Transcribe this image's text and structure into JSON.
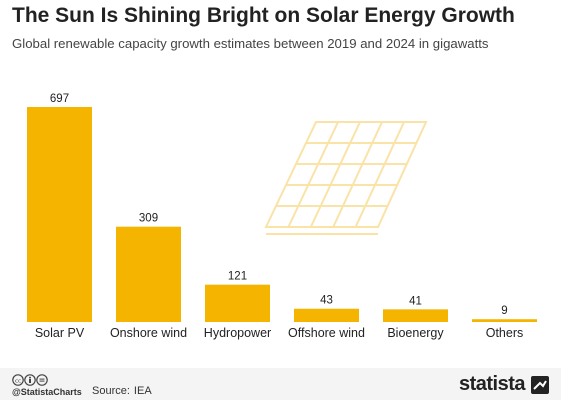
{
  "chart_data": {
    "type": "bar",
    "title": "The Sun Is Shining Bright on Solar Energy Growth",
    "subtitle": "Global renewable capacity growth estimates between 2019 and 2024 in gigawatts",
    "categories": [
      "Solar PV",
      "Onshore wind",
      "Hydropower",
      "Offshore wind",
      "Bioenergy",
      "Others"
    ],
    "values": [
      697,
      309,
      121,
      43,
      41,
      9
    ],
    "bar_color": "#f5b400",
    "ylim": [
      0,
      697
    ],
    "grid": false,
    "data_labels": true
  },
  "footer": {
    "handle": "@StatistaCharts",
    "source_label": "Source:",
    "source_value": "IEA",
    "brand": "statista"
  },
  "colors": {
    "panel_line": "#fae3a6",
    "footer_bg": "#f4f4f4"
  },
  "icons": [
    "creative-commons-icon",
    "solar-panel-illustration-icon",
    "statista-logo-icon"
  ]
}
